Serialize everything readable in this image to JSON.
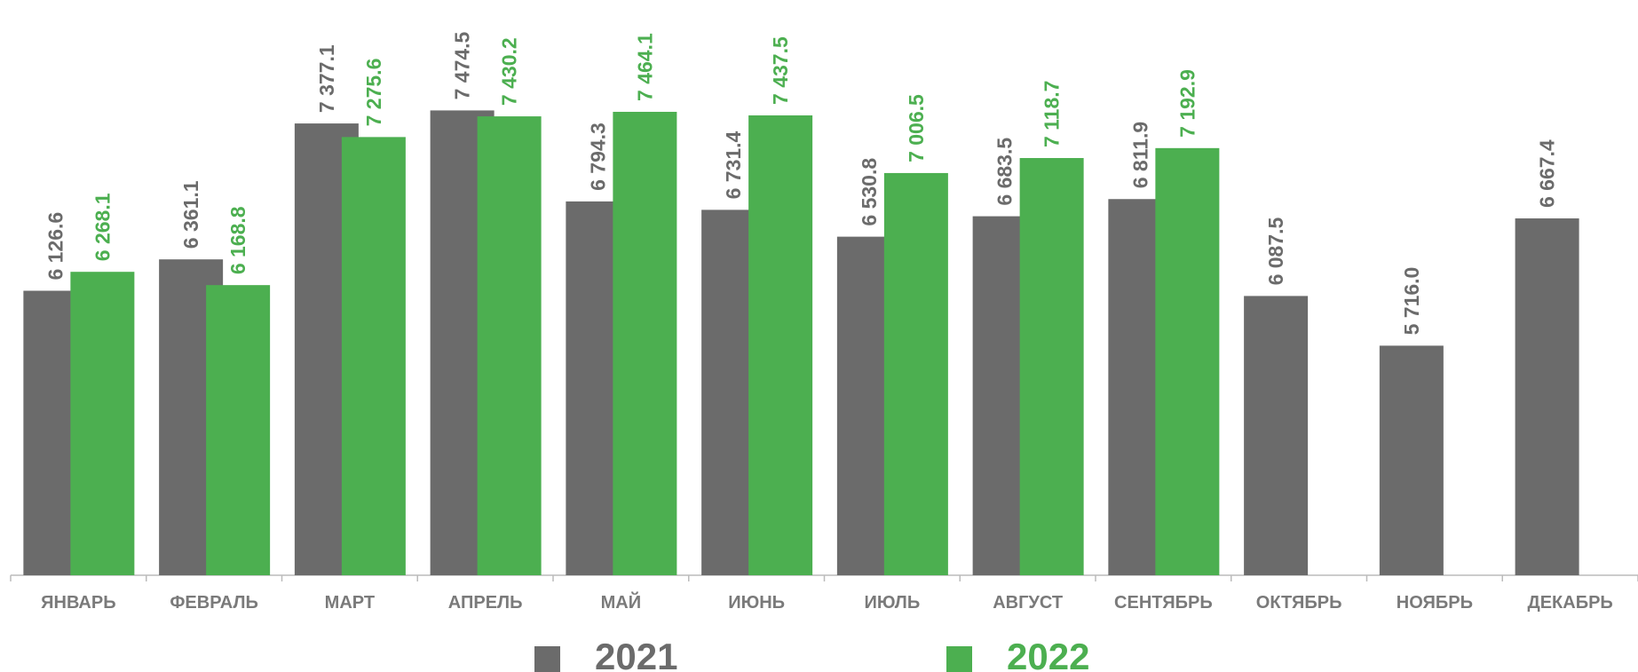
{
  "chart_data": {
    "type": "bar",
    "categories": [
      "ЯНВАРЬ",
      "ФЕВРАЛЬ",
      "МАРТ",
      "АПРЕЛЬ",
      "МАЙ",
      "ИЮНЬ",
      "ИЮЛЬ",
      "АВГУСТ",
      "СЕНТЯБРЬ",
      "ОКТЯБРЬ",
      "НОЯБРЬ",
      "ДЕКАБРЬ"
    ],
    "series": [
      {
        "name": "2021",
        "color": "#6b6b6b",
        "values": [
          6126.6,
          6361.1,
          7377.1,
          7474.5,
          6794.3,
          6731.4,
          6530.8,
          6683.5,
          6811.9,
          6087.5,
          5716.0,
          6667.4
        ],
        "value_labels": [
          "6 126.6",
          "6 361.1",
          "7 377.1",
          "7 474.5",
          "6 794.3",
          "6 731.4",
          "6 530.8",
          "6 683.5",
          "6 811.9",
          "6 087.5",
          "5 716.0",
          "6 667.4"
        ]
      },
      {
        "name": "2022",
        "color": "#4caf50",
        "values": [
          6268.1,
          6168.8,
          7275.6,
          7430.2,
          7464.1,
          7437.5,
          7006.5,
          7118.7,
          7192.9,
          null,
          null,
          null
        ],
        "value_labels": [
          "6 268.1",
          "6 168.8",
          "7 275.6",
          "7 430.2",
          "7 464.1",
          "7 437.5",
          "7 006.5",
          "7 118.7",
          "7 192.9",
          null,
          null,
          null
        ]
      }
    ],
    "ylim": [
      4000,
      8300
    ]
  }
}
